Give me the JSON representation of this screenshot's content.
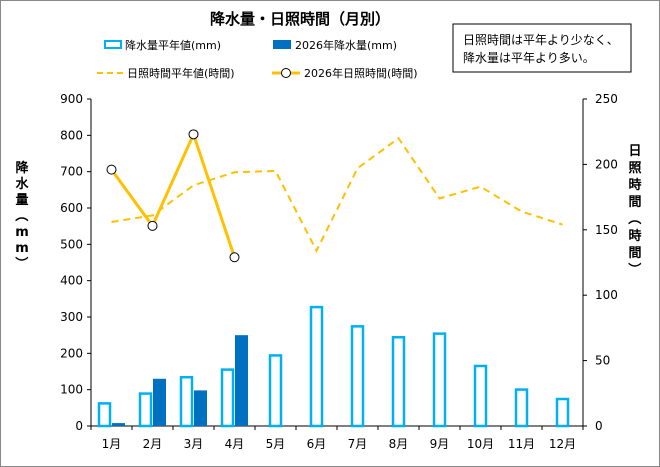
{
  "chart_data": {
    "type": "bar+line",
    "title": "降水量・日照時間（月別）",
    "categories": [
      "1月",
      "2月",
      "3月",
      "4月",
      "5月",
      "6月",
      "7月",
      "8月",
      "9月",
      "10月",
      "11月",
      "12月"
    ],
    "ylabel_left": "降水量（mm）",
    "ylabel_right": "日照時間（時間）",
    "ylim_left": [
      0,
      900
    ],
    "yticks_left": [
      "0",
      "100",
      "200",
      "300",
      "400",
      "500",
      "600",
      "700",
      "800",
      "900"
    ],
    "ylim_right": [
      0,
      250
    ],
    "yticks_right": [
      "0",
      "50",
      "100",
      "150",
      "200",
      "250"
    ],
    "note": [
      "日照時間は平年より少なく、",
      "降水量は平年より多い。"
    ],
    "series": [
      {
        "name": "降水量平年値(mm)",
        "kind": "bar",
        "axis": "left",
        "style": "outline",
        "color": "#00b0f0",
        "values": [
          65,
          92,
          137,
          158,
          197,
          330,
          277,
          247,
          257,
          168,
          103,
          77
        ]
      },
      {
        "name": "2026年降水量(mm)",
        "kind": "bar",
        "axis": "left",
        "style": "filled",
        "color": "#0070c0",
        "values": [
          8,
          130,
          98,
          250,
          null,
          null,
          null,
          null,
          null,
          null,
          null,
          null
        ]
      },
      {
        "name": "日照時間平年値(時間)",
        "kind": "line",
        "axis": "right",
        "style": "dashed",
        "color": "#ffc000",
        "values": [
          156,
          161,
          184,
          194,
          195,
          134,
          197,
          220,
          174,
          183,
          164,
          154
        ]
      },
      {
        "name": "2026年日照時間(時間)",
        "kind": "line",
        "axis": "right",
        "style": "solid-markers",
        "color": "#ffc000",
        "values": [
          196,
          153,
          223,
          129,
          null,
          null,
          null,
          null,
          null,
          null,
          null,
          null
        ]
      }
    ],
    "grid": false,
    "legend_position": "top"
  }
}
